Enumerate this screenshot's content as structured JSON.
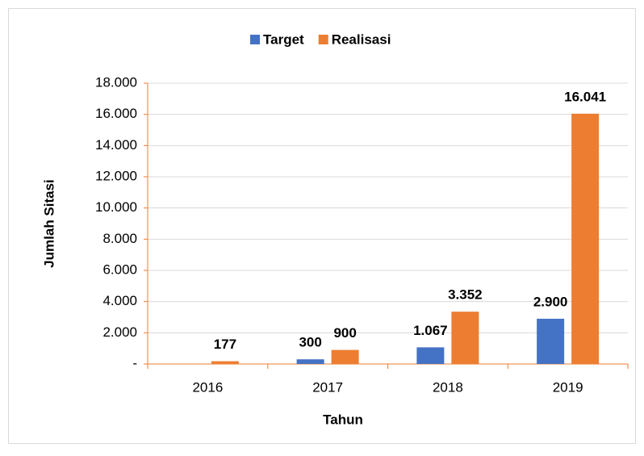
{
  "chart_data": {
    "type": "bar",
    "xlabel": "Tahun",
    "ylabel": "Jumlah Sitasi",
    "categories": [
      "2016",
      "2017",
      "2018",
      "2019"
    ],
    "series": [
      {
        "name": "Target",
        "color": "#4472c4",
        "values": [
          null,
          300,
          1067,
          2900
        ],
        "value_labels": [
          null,
          "300",
          "1.067",
          "2.900"
        ]
      },
      {
        "name": "Realisasi",
        "color": "#ed7d31",
        "values": [
          177,
          900,
          3352,
          16041
        ],
        "value_labels": [
          "177",
          "900",
          "3.352",
          "16.041"
        ]
      }
    ],
    "ylim": [
      0,
      18000
    ],
    "yticks": [
      {
        "value": 0,
        "label": "-"
      },
      {
        "value": 2000,
        "label": "2.000"
      },
      {
        "value": 4000,
        "label": "4.000"
      },
      {
        "value": 6000,
        "label": "6.000"
      },
      {
        "value": 8000,
        "label": "8.000"
      },
      {
        "value": 10000,
        "label": "10.000"
      },
      {
        "value": 12000,
        "label": "12.000"
      },
      {
        "value": 14000,
        "label": "14.000"
      },
      {
        "value": 16000,
        "label": "16.000"
      },
      {
        "value": 18000,
        "label": "18.000"
      }
    ],
    "grid": true,
    "legend": "top"
  }
}
